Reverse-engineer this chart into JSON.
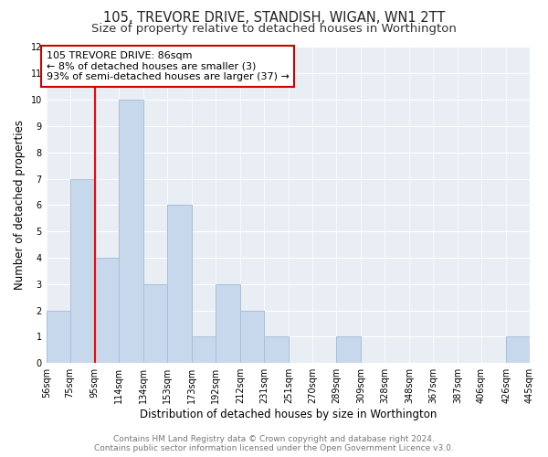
{
  "title": "105, TREVORE DRIVE, STANDISH, WIGAN, WN1 2TT",
  "subtitle": "Size of property relative to detached houses in Worthington",
  "xlabel": "Distribution of detached houses by size in Worthington",
  "ylabel": "Number of detached properties",
  "bar_edges": [
    56,
    75,
    95,
    114,
    134,
    153,
    173,
    192,
    212,
    231,
    251,
    270,
    289,
    309,
    328,
    348,
    367,
    387,
    406,
    426,
    445
  ],
  "bar_heights": [
    2,
    7,
    4,
    10,
    3,
    6,
    1,
    3,
    2,
    1,
    0,
    0,
    1,
    0,
    0,
    0,
    0,
    0,
    0,
    1
  ],
  "bar_color": "#c8d8ec",
  "bar_edgecolor": "#a8c0d8",
  "ylim": [
    0,
    12
  ],
  "yticks": [
    0,
    1,
    2,
    3,
    4,
    5,
    6,
    7,
    8,
    9,
    10,
    11,
    12
  ],
  "red_line_x": 95,
  "annotation_text": "105 TREVORE DRIVE: 86sqm\n← 8% of detached houses are smaller (3)\n93% of semi-detached houses are larger (37) →",
  "annotation_box_facecolor": "#ffffff",
  "annotation_box_edgecolor": "#cc0000",
  "footer_line1": "Contains HM Land Registry data © Crown copyright and database right 2024.",
  "footer_line2": "Contains public sector information licensed under the Open Government Licence v3.0.",
  "background_color": "#ffffff",
  "plot_bg_color": "#e8eef4",
  "title_fontsize": 10.5,
  "subtitle_fontsize": 9.5,
  "tick_label_fontsize": 7,
  "ylabel_fontsize": 8.5,
  "xlabel_fontsize": 8.5,
  "annotation_fontsize": 8,
  "footer_fontsize": 6.5
}
